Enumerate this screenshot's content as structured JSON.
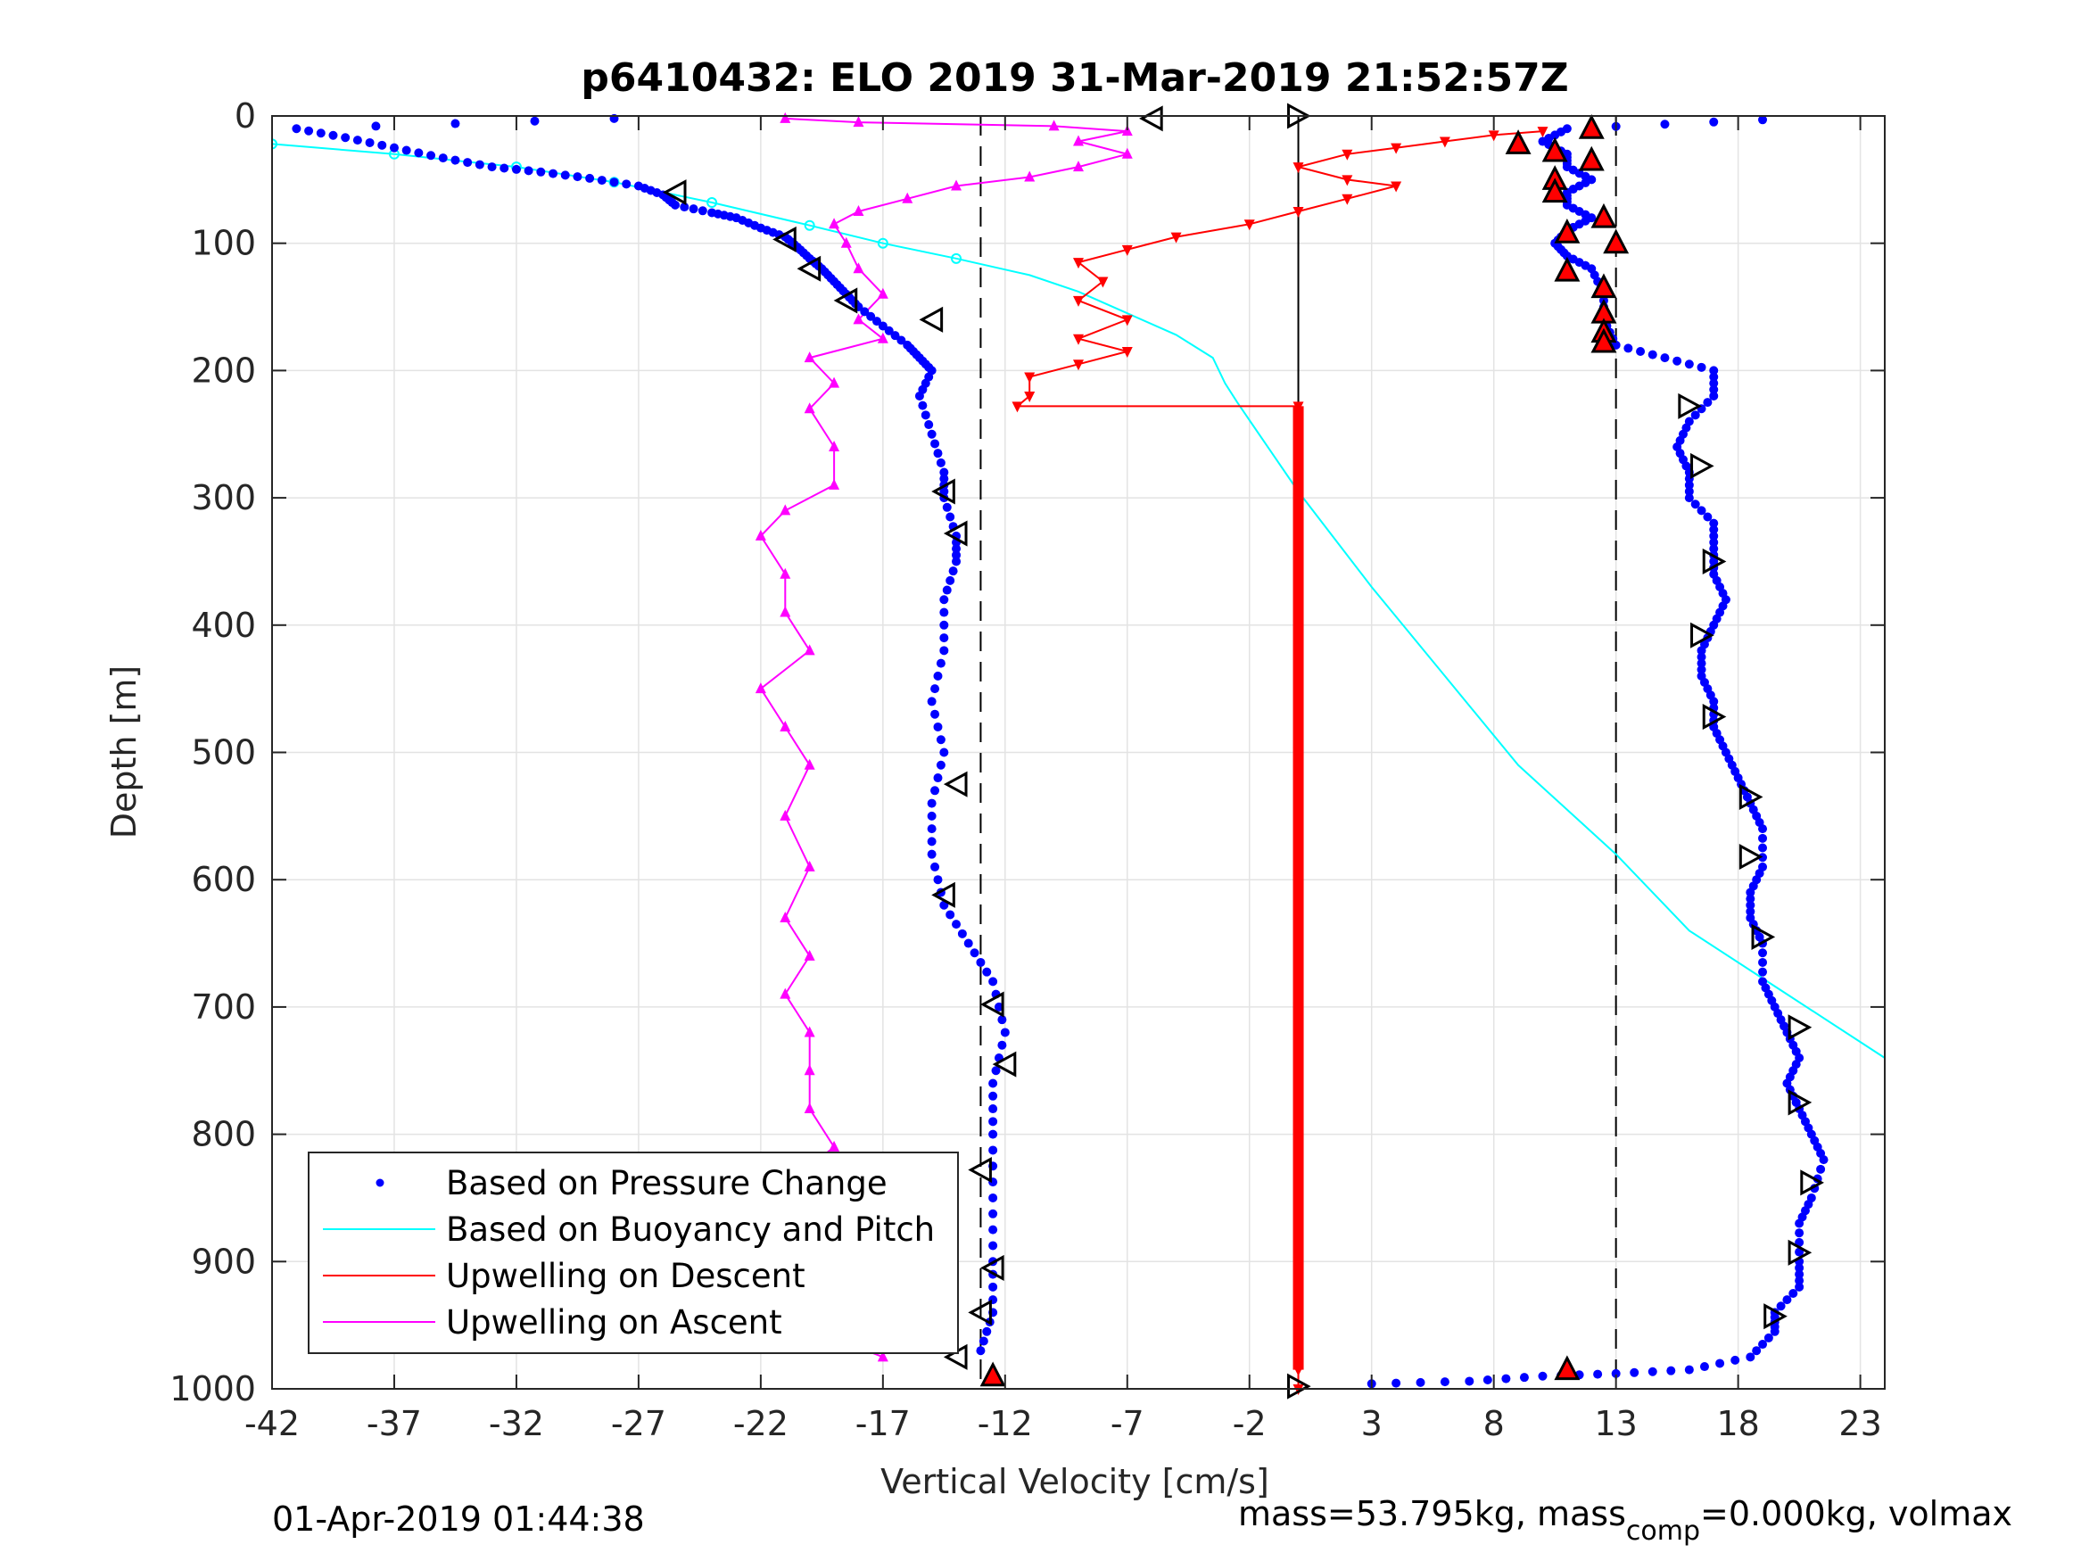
{
  "chart_data": {
    "type": "scatter",
    "title": "p6410432: ELO 2019 31-Mar-2019 21:52:57Z",
    "xlabel": "Vertical Velocity [cm/s]",
    "ylabel": "Depth [m]",
    "xlim": [
      -42,
      24
    ],
    "ylim": [
      0,
      1000
    ],
    "y_reversed": true,
    "grid": true,
    "x_ticks": [
      -42,
      -37,
      -32,
      -27,
      -22,
      -17,
      -12,
      -7,
      -2,
      3,
      8,
      13,
      18,
      23
    ],
    "y_ticks": [
      0,
      100,
      200,
      300,
      400,
      500,
      600,
      700,
      800,
      900,
      1000
    ],
    "x_tick_labels": [
      "-42",
      "-37",
      "-32",
      "-27",
      "-22",
      "-17",
      "-12",
      "-7",
      "-2",
      "3",
      "8",
      "13",
      "18",
      "23"
    ],
    "y_tick_labels": [
      "0",
      "100",
      "200",
      "300",
      "400",
      "500",
      "600",
      "700",
      "800",
      "900",
      "1000"
    ],
    "reference_lines": {
      "dashed_x": [
        -13,
        13
      ],
      "solid_x": [
        0
      ]
    },
    "legend_position": "bottom-left",
    "legend": [
      {
        "label": "Based on Pressure Change",
        "color": "#0000ff",
        "style": "dot"
      },
      {
        "label": "Based on Buoyancy and Pitch",
        "color": "#00ffff",
        "style": "line"
      },
      {
        "label": "Upwelling on Descent",
        "color": "#ff0000",
        "style": "line"
      },
      {
        "label": "Upwelling on Ascent",
        "color": "#ff00ff",
        "style": "line"
      }
    ],
    "series": [
      {
        "name": "Based on Pressure Change",
        "color": "#0000ff",
        "branch": "descent",
        "points": [
          [
            -28,
            2
          ],
          [
            -41,
            10
          ],
          [
            -39,
            17
          ],
          [
            -37,
            25
          ],
          [
            -35,
            33
          ],
          [
            -33,
            40
          ],
          [
            -31,
            44
          ],
          [
            -29,
            49
          ],
          [
            -27,
            55
          ],
          [
            -26,
            62
          ],
          [
            -25.5,
            70
          ],
          [
            -24,
            76
          ],
          [
            -23,
            80
          ],
          [
            -22,
            88
          ],
          [
            -21,
            95
          ],
          [
            -20.5,
            103
          ],
          [
            -20,
            112
          ],
          [
            -19.5,
            120
          ],
          [
            -19,
            130
          ],
          [
            -18.5,
            140
          ],
          [
            -18,
            150
          ],
          [
            -17,
            165
          ],
          [
            -16,
            180
          ],
          [
            -15.5,
            190
          ],
          [
            -15,
            200
          ],
          [
            -15.5,
            220
          ],
          [
            -15,
            250
          ],
          [
            -14.5,
            280
          ],
          [
            -14.5,
            300
          ],
          [
            -14,
            330
          ],
          [
            -14,
            350
          ],
          [
            -14.5,
            380
          ],
          [
            -14.5,
            420
          ],
          [
            -15,
            460
          ],
          [
            -14.5,
            500
          ],
          [
            -15,
            540
          ],
          [
            -15,
            580
          ],
          [
            -14.5,
            620
          ],
          [
            -13.5,
            650
          ],
          [
            -12.5,
            680
          ],
          [
            -12,
            720
          ],
          [
            -12.5,
            760
          ],
          [
            -12.5,
            800
          ],
          [
            -12.5,
            850
          ],
          [
            -12.5,
            900
          ],
          [
            -12.5,
            940
          ],
          [
            -13,
            970
          ]
        ]
      },
      {
        "name": "Based on Pressure Change",
        "color": "#0000ff",
        "branch": "ascent",
        "points": [
          [
            3,
            996
          ],
          [
            7,
            994
          ],
          [
            10,
            990
          ],
          [
            13,
            988
          ],
          [
            16,
            985
          ],
          [
            18.5,
            975
          ],
          [
            19.5,
            955
          ],
          [
            19.5,
            940
          ],
          [
            20.5,
            920
          ],
          [
            20.5,
            900
          ],
          [
            20.5,
            870
          ],
          [
            21,
            850
          ],
          [
            21.5,
            820
          ],
          [
            21,
            800
          ],
          [
            20.5,
            780
          ],
          [
            20,
            760
          ],
          [
            20.5,
            740
          ],
          [
            20,
            720
          ],
          [
            19.5,
            700
          ],
          [
            19,
            680
          ],
          [
            19,
            650
          ],
          [
            18.5,
            630
          ],
          [
            18.5,
            610
          ],
          [
            19,
            590
          ],
          [
            19,
            560
          ],
          [
            18.5,
            540
          ],
          [
            18,
            520
          ],
          [
            17.5,
            500
          ],
          [
            17,
            480
          ],
          [
            17,
            460
          ],
          [
            16.5,
            440
          ],
          [
            16.5,
            420
          ],
          [
            17,
            400
          ],
          [
            17.5,
            380
          ],
          [
            17,
            360
          ],
          [
            17,
            340
          ],
          [
            17,
            320
          ],
          [
            16,
            300
          ],
          [
            16,
            280
          ],
          [
            15.5,
            260
          ],
          [
            16,
            240
          ],
          [
            17,
            220
          ],
          [
            17,
            200
          ],
          [
            15,
            190
          ],
          [
            13,
            180
          ],
          [
            12.5,
            160
          ],
          [
            12.5,
            140
          ],
          [
            12,
            120
          ],
          [
            11,
            110
          ],
          [
            10.5,
            100
          ],
          [
            11,
            90
          ],
          [
            12,
            80
          ],
          [
            11,
            70
          ],
          [
            11,
            60
          ],
          [
            12,
            50
          ],
          [
            11,
            40
          ],
          [
            11,
            30
          ],
          [
            10,
            20
          ],
          [
            11,
            10
          ],
          [
            19,
            3
          ]
        ]
      },
      {
        "name": "Based on Buoyancy and Pitch",
        "color": "#00ffff",
        "points": [
          [
            -42,
            22
          ],
          [
            -37,
            30
          ],
          [
            -32,
            40
          ],
          [
            -28,
            52
          ],
          [
            -24,
            68
          ],
          [
            -20,
            86
          ],
          [
            -17,
            100
          ],
          [
            -14,
            112
          ],
          [
            -11,
            125
          ],
          [
            -9,
            138
          ],
          [
            -7,
            155
          ],
          [
            -5,
            172
          ],
          [
            -3.5,
            190
          ],
          [
            -3,
            210
          ],
          [
            -2.5,
            225
          ],
          [
            0,
            295
          ],
          [
            3,
            370
          ],
          [
            6,
            440
          ],
          [
            9,
            510
          ],
          [
            13,
            580
          ],
          [
            16,
            640
          ],
          [
            20,
            690
          ],
          [
            24,
            740
          ]
        ]
      },
      {
        "name": "Upwelling on Descent",
        "color": "#ff0000",
        "points": [
          [
            10,
            12
          ],
          [
            8,
            15
          ],
          [
            6,
            20
          ],
          [
            4,
            25
          ],
          [
            2,
            30
          ],
          [
            0,
            40
          ],
          [
            2,
            50
          ],
          [
            4,
            55
          ],
          [
            2,
            65
          ],
          [
            0,
            75
          ],
          [
            -2,
            85
          ],
          [
            -5,
            95
          ],
          [
            -7,
            105
          ],
          [
            -9,
            115
          ],
          [
            -8,
            130
          ],
          [
            -9,
            145
          ],
          [
            -7,
            160
          ],
          [
            -9,
            175
          ],
          [
            -7,
            185
          ],
          [
            -9,
            195
          ],
          [
            -11,
            205
          ],
          [
            -11,
            220
          ],
          [
            -11.5,
            228
          ],
          [
            0,
            228
          ],
          [
            0,
            300
          ],
          [
            0,
            400
          ],
          [
            0,
            500
          ],
          [
            0,
            600
          ],
          [
            0,
            700
          ],
          [
            0,
            800
          ],
          [
            0,
            900
          ],
          [
            0,
            985
          ],
          [
            0,
            1000
          ]
        ]
      },
      {
        "name": "Upwelling on Ascent",
        "color": "#ff00ff",
        "points": [
          [
            -21,
            2
          ],
          [
            -18,
            5
          ],
          [
            -10,
            8
          ],
          [
            -7,
            12
          ],
          [
            -9,
            20
          ],
          [
            -7,
            30
          ],
          [
            -9,
            40
          ],
          [
            -11,
            48
          ],
          [
            -14,
            55
          ],
          [
            -16,
            65
          ],
          [
            -18,
            75
          ],
          [
            -19,
            85
          ],
          [
            -18.5,
            100
          ],
          [
            -18,
            120
          ],
          [
            -17,
            140
          ],
          [
            -18,
            160
          ],
          [
            -17,
            175
          ],
          [
            -20,
            190
          ],
          [
            -19,
            210
          ],
          [
            -20,
            230
          ],
          [
            -19,
            260
          ],
          [
            -19,
            290
          ],
          [
            -21,
            310
          ],
          [
            -22,
            330
          ],
          [
            -21,
            360
          ],
          [
            -21,
            390
          ],
          [
            -20,
            420
          ],
          [
            -22,
            450
          ],
          [
            -21,
            480
          ],
          [
            -20,
            510
          ],
          [
            -21,
            550
          ],
          [
            -20,
            590
          ],
          [
            -21,
            630
          ],
          [
            -20,
            660
          ],
          [
            -21,
            690
          ],
          [
            -20,
            720
          ],
          [
            -20,
            750
          ],
          [
            -20,
            780
          ],
          [
            -19,
            810
          ],
          [
            -21,
            840
          ],
          [
            -20,
            870
          ],
          [
            -20,
            910
          ],
          [
            -19,
            940
          ],
          [
            -19,
            960
          ],
          [
            -17,
            975
          ]
        ]
      }
    ],
    "markers": {
      "descent_triangles": {
        "color": "#000000",
        "fill": "none",
        "points": [
          [
            -6,
            2
          ],
          [
            -25.5,
            60
          ],
          [
            -21,
            97
          ],
          [
            -20,
            120
          ],
          [
            -18.5,
            145
          ],
          [
            -15,
            160
          ],
          [
            -14.5,
            295
          ],
          [
            -14,
            328
          ],
          [
            -14,
            525
          ],
          [
            -14.5,
            612
          ],
          [
            -12.5,
            698
          ],
          [
            -12,
            745
          ],
          [
            -13,
            828
          ],
          [
            -12.5,
            905
          ],
          [
            -13,
            940
          ],
          [
            -14,
            975
          ]
        ]
      },
      "ascent_triangles": {
        "color": "#000000",
        "fill": "none",
        "points": [
          [
            0,
            0
          ],
          [
            16,
            228
          ],
          [
            16.5,
            275
          ],
          [
            17,
            350
          ],
          [
            16.5,
            408
          ],
          [
            17,
            472
          ],
          [
            18.5,
            535
          ],
          [
            18.5,
            582
          ],
          [
            19,
            645
          ],
          [
            20.5,
            716
          ],
          [
            20.5,
            775
          ],
          [
            21,
            838
          ],
          [
            20.5,
            893
          ],
          [
            19.5,
            943
          ],
          [
            0,
            998
          ]
        ]
      },
      "up_triangles": {
        "color": "#000000",
        "fill": "#ff0000",
        "points": [
          [
            12,
            10
          ],
          [
            9,
            22
          ],
          [
            10.5,
            28
          ],
          [
            12,
            35
          ],
          [
            10.5,
            50
          ],
          [
            10.5,
            60
          ],
          [
            12.5,
            80
          ],
          [
            11,
            92
          ],
          [
            13,
            100
          ],
          [
            11,
            122
          ],
          [
            12.5,
            135
          ],
          [
            12.5,
            155
          ],
          [
            12.5,
            170
          ],
          [
            12.5,
            178
          ],
          [
            -12.5,
            990
          ],
          [
            11,
            985
          ]
        ]
      }
    }
  },
  "footer": {
    "left": "01-Apr-2019 01:44:38",
    "right_prefix": "mass=53.795kg, mass",
    "right_sub": "comp",
    "right_suffix": "=0.000kg, volmax"
  }
}
